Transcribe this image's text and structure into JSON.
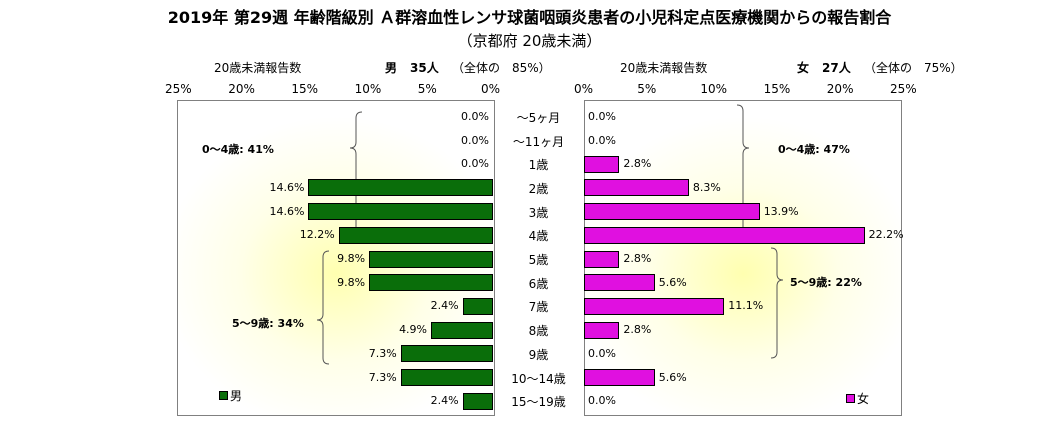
{
  "title": "2019年 第29週 年齢階級別 Ａ群溶血性レンサ球菌咽頭炎患者の小児科定点医療機関からの報告割合",
  "subtitle": "（京都府 20歳未満）",
  "left_header": {
    "axis_label": "20歳未満報告数",
    "sex": "男",
    "count": "35人",
    "share": "（全体の　85%）"
  },
  "right_header": {
    "axis_label": "20歳未満報告数",
    "sex": "女",
    "count": "27人",
    "share": "（全体の　75%）"
  },
  "left_ticks": [
    "25%",
    "20%",
    "15%",
    "10%",
    "5%",
    "0%"
  ],
  "right_ticks": [
    "0%",
    "5%",
    "10%",
    "15%",
    "20%",
    "25%"
  ],
  "groups": {
    "male_0_4": "0～4歳: 41%",
    "male_5_9": "5～9歳: 34%",
    "female_0_4": "0～4歳: 47%",
    "female_5_9": "5～9歳: 22%"
  },
  "legend": {
    "male": "男",
    "female": "女"
  },
  "colors": {
    "male": "#0a6e0a",
    "female": "#e010e0"
  },
  "chart_data": {
    "type": "bar",
    "orientation": "horizontal",
    "categories": [
      "～5ヶ月",
      "～11ヶ月",
      "1歳",
      "2歳",
      "3歳",
      "4歳",
      "5歳",
      "6歳",
      "7歳",
      "8歳",
      "9歳",
      "10～14歳",
      "15～19歳"
    ],
    "series": [
      {
        "name": "男",
        "values": [
          0.0,
          0.0,
          0.0,
          14.6,
          14.6,
          12.2,
          9.8,
          9.8,
          2.4,
          4.9,
          7.3,
          7.3,
          2.4
        ],
        "labels": [
          "0.0%",
          "0.0%",
          "0.0%",
          "14.6%",
          "14.6%",
          "12.2%",
          "9.8%",
          "9.8%",
          "2.4%",
          "4.9%",
          "7.3%",
          "7.3%",
          "2.4%"
        ]
      },
      {
        "name": "女",
        "values": [
          0.0,
          0.0,
          2.8,
          8.3,
          13.9,
          22.2,
          2.8,
          5.6,
          11.1,
          2.8,
          0.0,
          5.6,
          0.0
        ],
        "labels": [
          "0.0%",
          "0.0%",
          "2.8%",
          "8.3%",
          "13.9%",
          "22.2%",
          "2.8%",
          "5.6%",
          "11.1%",
          "2.8%",
          "0.0%",
          "5.6%",
          "0.0%"
        ]
      }
    ],
    "xlim": [
      0,
      25
    ],
    "unit": "%",
    "grid": false
  }
}
